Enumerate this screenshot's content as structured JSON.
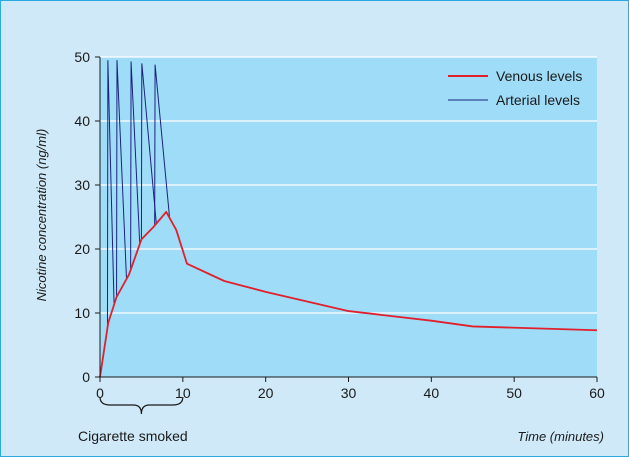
{
  "chart_data": {
    "type": "line",
    "title": "",
    "xlabel": "Time (minutes)",
    "ylabel": "Nicotine concentration (ng/ml)",
    "xlim": [
      0,
      60
    ],
    "ylim": [
      0,
      50
    ],
    "x_ticks": [
      "0",
      "10",
      "20",
      "30",
      "40",
      "50",
      "60"
    ],
    "y_ticks": [
      "0",
      "10",
      "20",
      "30",
      "40",
      "50"
    ],
    "grid": "horizontal",
    "legend_position": "top-right",
    "annotation": "Cigarette smoked",
    "annotation_range": [
      0,
      10
    ],
    "series": [
      {
        "name": "Venous levels",
        "color": "#e0202c",
        "points": [
          [
            0,
            0
          ],
          [
            1,
            8.5
          ],
          [
            2,
            12.5
          ],
          [
            3.5,
            16
          ],
          [
            5,
            21.5
          ],
          [
            6.5,
            23.5
          ],
          [
            8,
            25.8
          ],
          [
            9.2,
            23
          ],
          [
            10.5,
            17.7
          ],
          [
            15,
            15
          ],
          [
            20,
            13.3
          ],
          [
            25,
            11.8
          ],
          [
            30,
            10.3
          ],
          [
            40,
            8.8
          ],
          [
            45,
            7.9
          ],
          [
            60,
            7.3
          ]
        ]
      },
      {
        "name": "Arterial levels",
        "color": "#1a237e",
        "spikes": [
          [
            0.9,
            1.7,
            49.5
          ],
          [
            2.0,
            3.2,
            49.5
          ],
          [
            3.7,
            4.8,
            49.3
          ],
          [
            5.0,
            6.8,
            49
          ],
          [
            6.6,
            8.4,
            48.8
          ]
        ]
      }
    ]
  }
}
